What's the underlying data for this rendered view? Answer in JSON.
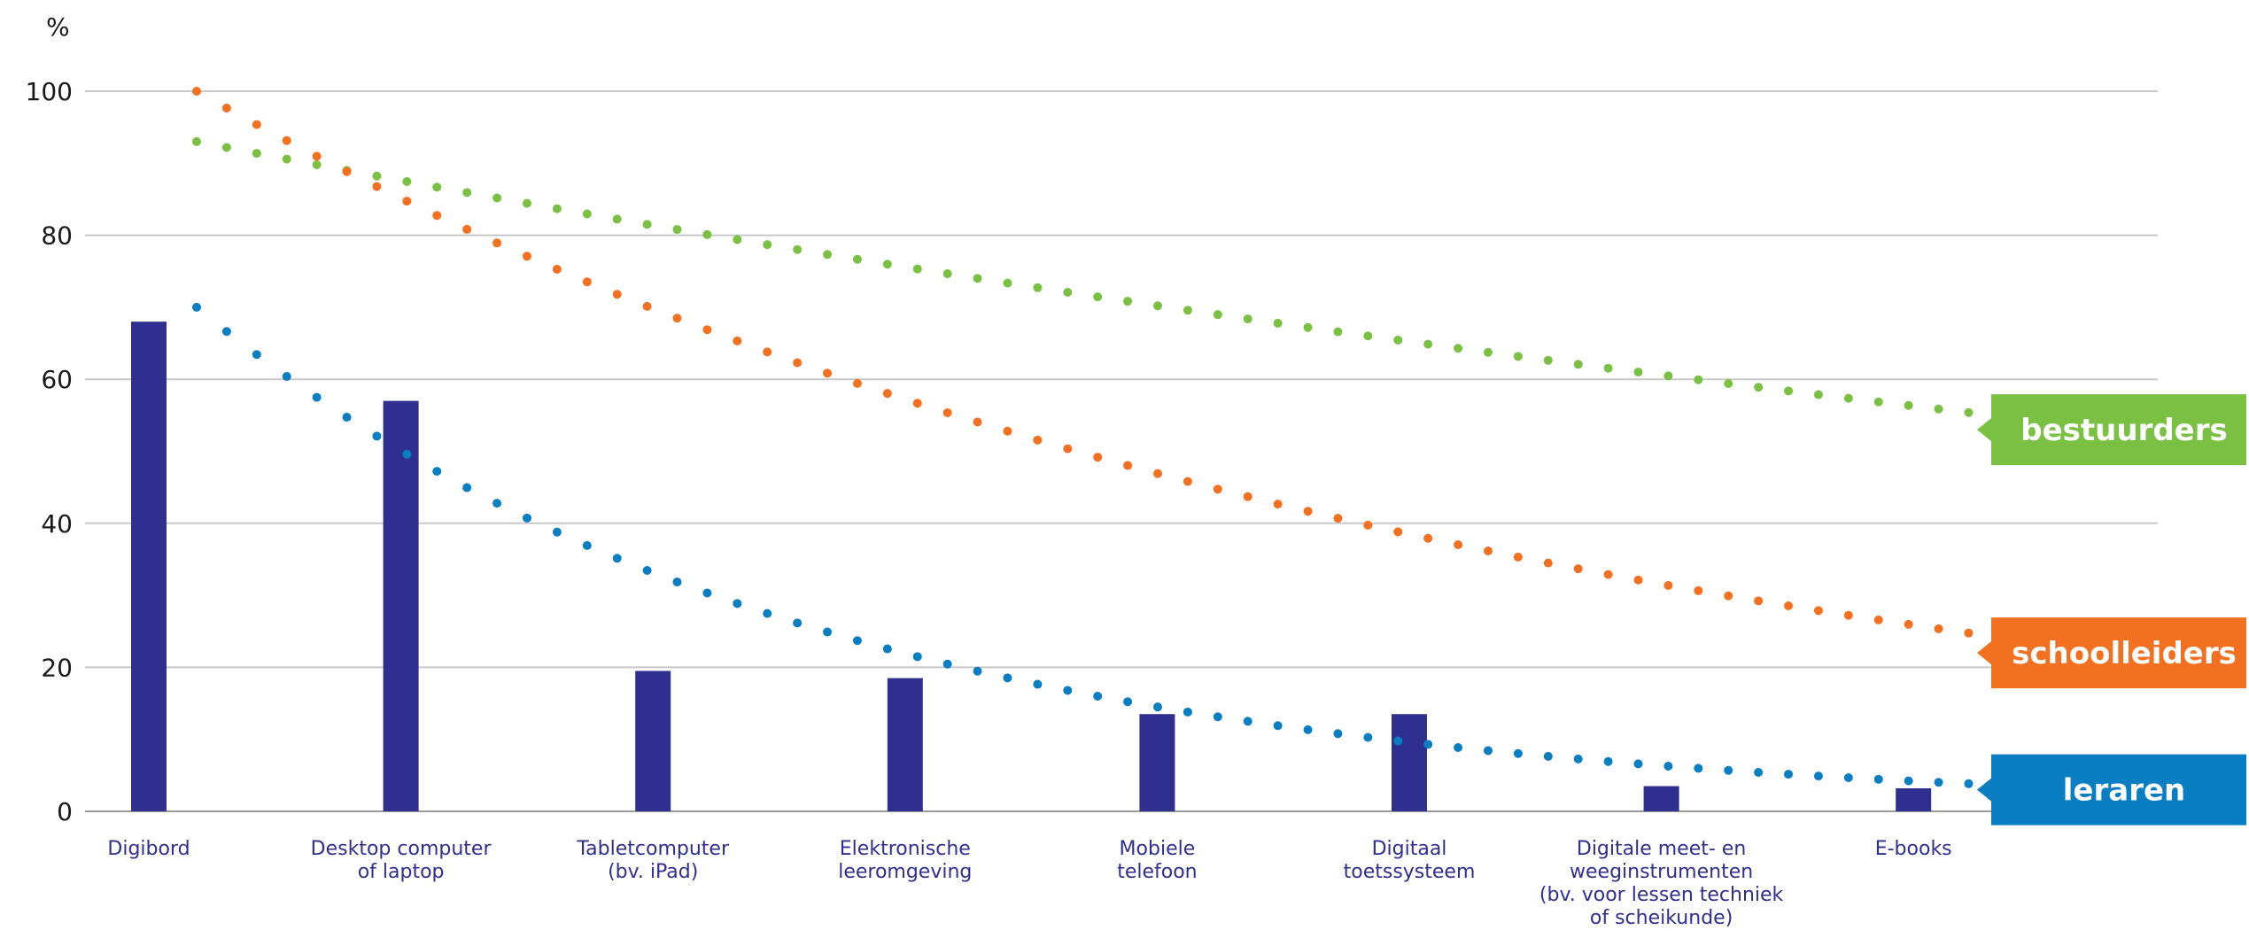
{
  "chart_data": {
    "type": "bar",
    "ylabel": "%",
    "ylim": [
      0,
      100
    ],
    "yticks": [
      0,
      20,
      40,
      60,
      80,
      100
    ],
    "grid": true,
    "categories": [
      [
        "Digibord"
      ],
      [
        "Desktop computer",
        "of laptop"
      ],
      [
        "Tabletcomputer",
        "(bv. iPad)"
      ],
      [
        "Elektronische",
        "leeromgeving"
      ],
      [
        "Mobiele",
        "telefoon"
      ],
      [
        "Digitaal",
        "toetssysteem"
      ],
      [
        "Digitale meet- en",
        "weeginstrumenten",
        "(bv. voor lessen techniek",
        "of scheikunde)"
      ],
      [
        "E-books"
      ]
    ],
    "values": [
      68,
      57,
      19.5,
      18.5,
      13.5,
      13.5,
      3.5,
      3.2
    ],
    "bar_color": "#2e2f8e",
    "trend_lines": [
      {
        "name": "bestuurders",
        "color": "#7ac143",
        "start": 93,
        "end": 53
      },
      {
        "name": "schoolleiders",
        "color": "#f37021",
        "start": 100,
        "end": 22
      },
      {
        "name": "leraren",
        "color": "#0a7ec2",
        "start": 70,
        "end": 3
      }
    ]
  }
}
